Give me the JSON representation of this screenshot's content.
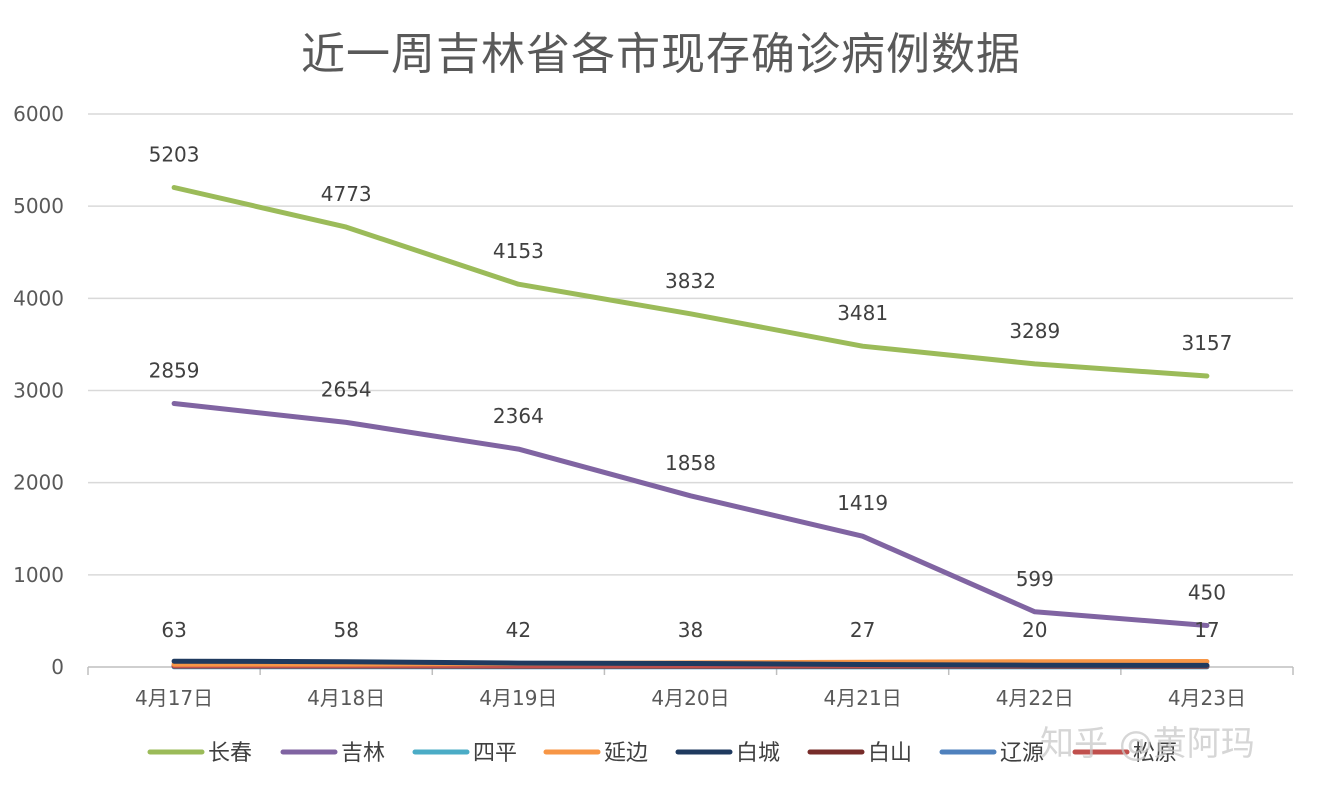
{
  "chart_data": {
    "type": "line",
    "title": "近一周吉林省各市现存确诊病例数据",
    "categories": [
      "4月17日",
      "4月18日",
      "4月19日",
      "4月20日",
      "4月21日",
      "4月22日",
      "4月23日"
    ],
    "ylim": [
      0,
      6000
    ],
    "yticks": [
      "0",
      "1000",
      "2000",
      "3000",
      "4000",
      "5000",
      "6000"
    ],
    "grid": true,
    "legend_position": "bottom",
    "series": [
      {
        "name": "长春",
        "color": "#9BBB59",
        "values": [
          5203,
          4773,
          4153,
          3832,
          3481,
          3289,
          3157
        ],
        "labels": [
          "5203",
          "4773",
          "4153",
          "3832",
          "3481",
          "3289",
          "3157"
        ]
      },
      {
        "name": "吉林",
        "color": "#8064A2",
        "values": [
          2859,
          2654,
          2364,
          1858,
          1419,
          599,
          450
        ],
        "labels": [
          "2859",
          "2654",
          "2364",
          "1858",
          "1419",
          "599",
          "450"
        ]
      },
      {
        "name": "四平",
        "color": "#4BACC6",
        "values": [
          5,
          5,
          4,
          4,
          3,
          3,
          3
        ],
        "labels": []
      },
      {
        "name": "延边",
        "color": "#F79646",
        "values": [
          30,
          32,
          38,
          45,
          52,
          58,
          60
        ],
        "labels": []
      },
      {
        "name": "白城",
        "color": "#1F3A5F",
        "values": [
          63,
          58,
          42,
          38,
          27,
          20,
          17
        ],
        "labels": [
          "63",
          "58",
          "42",
          "38",
          "27",
          "20",
          "17"
        ]
      },
      {
        "name": "白山",
        "color": "#772C2A",
        "values": [
          10,
          10,
          9,
          9,
          8,
          8,
          8
        ],
        "labels": []
      },
      {
        "name": "辽源",
        "color": "#4F81BD",
        "values": [
          2,
          2,
          2,
          2,
          2,
          2,
          2
        ],
        "labels": []
      },
      {
        "name": "松原",
        "color": "#C0504D",
        "values": [
          15,
          15,
          14,
          14,
          13,
          13,
          13
        ],
        "labels": []
      }
    ]
  },
  "watermark": "知乎 @黄阿玛"
}
